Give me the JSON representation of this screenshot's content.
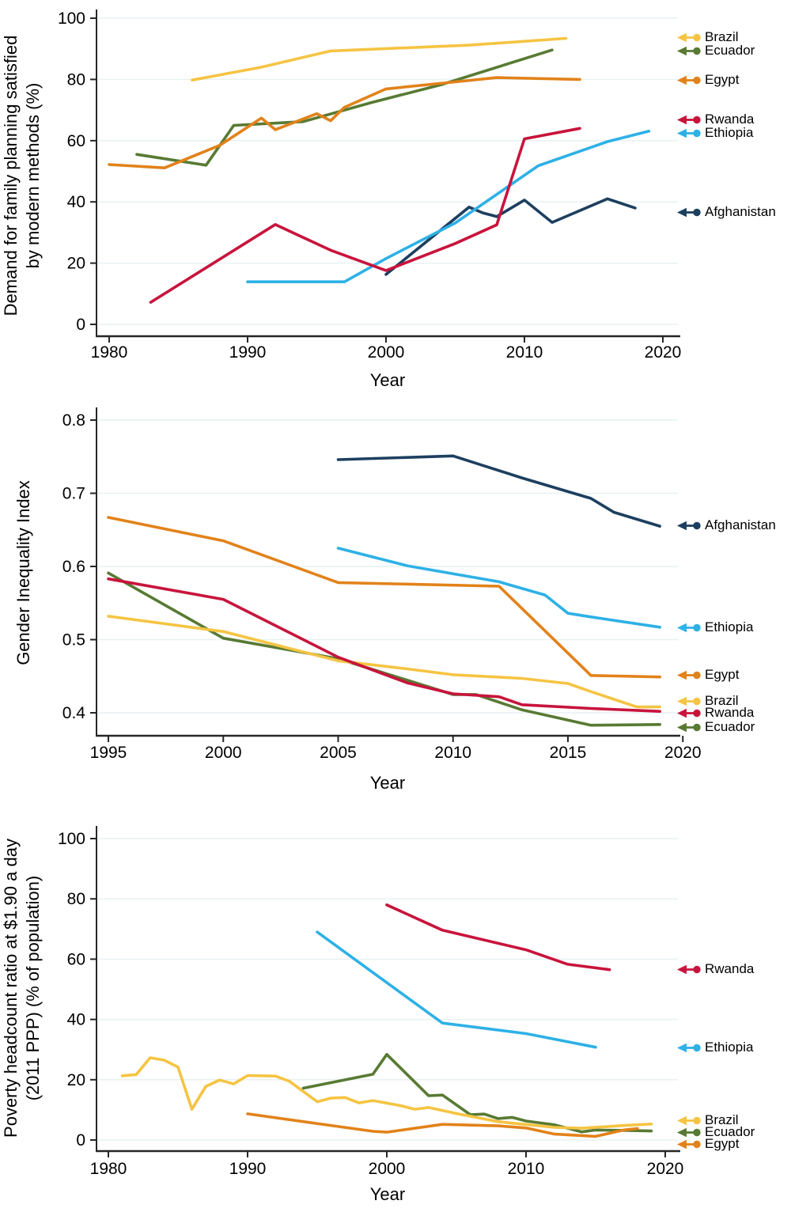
{
  "page": {
    "background": "#ffffff"
  },
  "icons": {
    "legend_marker": "arrow-left-dot-icon"
  },
  "colors": {
    "Brazil": "#F5C443",
    "Ecuador": "#587A33",
    "Egypt": "#E2821A",
    "Rwanda": "#C8143C",
    "Ethiopia": "#2EB1E6",
    "Afghanistan": "#1D3F5F",
    "grid": "#E8F1F3",
    "axis": "#262626",
    "text": "#000000"
  },
  "chart_data": [
    {
      "type": "line",
      "title": "",
      "ylabel_lines": [
        "Demand for family planning satisfied",
        "by modern methods (%)"
      ],
      "xlabel": "Year",
      "xlim": [
        1980,
        2020
      ],
      "xticks": [
        1980,
        1990,
        2000,
        2010,
        2020
      ],
      "ylim": [
        0,
        100
      ],
      "yticks": [
        0,
        20,
        40,
        60,
        80,
        100
      ],
      "grid": true,
      "legend_position": "right",
      "legend_order": [
        "Brazil",
        "Ecuador",
        "Egypt",
        "Rwanda",
        "Ethiopia",
        "Afghanistan"
      ],
      "series": [
        {
          "name": "Afghanistan",
          "points": [
            [
              2000,
              16.3
            ],
            [
              2006,
              38.3
            ],
            [
              2007,
              36.4
            ],
            [
              2008,
              35.2
            ],
            [
              2010,
              40.6
            ],
            [
              2012,
              33.3
            ],
            [
              2016,
              41.0
            ],
            [
              2018,
              38.0
            ]
          ]
        },
        {
          "name": "Ethiopia",
          "points": [
            [
              1990,
              13.9
            ],
            [
              1997,
              13.9
            ],
            [
              2000,
              21.5
            ],
            [
              2005,
              33.1
            ],
            [
              2011,
              51.8
            ],
            [
              2016,
              59.7
            ],
            [
              2019,
              63.1
            ]
          ]
        },
        {
          "name": "Ecuador",
          "points": [
            [
              1982,
              55.5
            ],
            [
              1987,
              52.0
            ],
            [
              1989,
              65.0
            ],
            [
              1994,
              66.2
            ],
            [
              1999,
              72.5
            ],
            [
              2004,
              78.3
            ],
            [
              2012,
              89.6
            ]
          ]
        },
        {
          "name": "Brazil",
          "points": [
            [
              1986,
              79.8
            ],
            [
              1991,
              84.0
            ],
            [
              1996,
              89.3
            ],
            [
              2006,
              91.2
            ],
            [
              2013,
              93.4
            ]
          ]
        },
        {
          "name": "Egypt",
          "points": [
            [
              1980,
              52.2
            ],
            [
              1984,
              51.1
            ],
            [
              1988,
              58.5
            ],
            [
              1991,
              67.4
            ],
            [
              1992,
              63.6
            ],
            [
              1995,
              68.8
            ],
            [
              1996,
              66.5
            ],
            [
              1997,
              70.9
            ],
            [
              2000,
              76.9
            ],
            [
              2005,
              79.2
            ],
            [
              2008,
              80.6
            ],
            [
              2014,
              80.0
            ]
          ]
        },
        {
          "name": "Rwanda",
          "points": [
            [
              1983,
              7.2
            ],
            [
              1992,
              32.6
            ],
            [
              1996,
              24.2
            ],
            [
              2000,
              17.6
            ],
            [
              2005,
              26.4
            ],
            [
              2008,
              32.5
            ],
            [
              2010,
              60.6
            ],
            [
              2014,
              64.0
            ]
          ]
        }
      ]
    },
    {
      "type": "line",
      "title": "",
      "ylabel_lines": [
        "Gender Inequality Index"
      ],
      "xlabel": "Year",
      "xlim": [
        1995,
        2020
      ],
      "xticks": [
        1995,
        2000,
        2005,
        2010,
        2015,
        2020
      ],
      "ylim": [
        0.4,
        0.8
      ],
      "yticks": [
        0.4,
        0.5,
        0.6,
        0.7,
        0.8
      ],
      "grid": true,
      "legend_position": "right",
      "legend_order": [
        "Afghanistan",
        "Ethiopia",
        "Egypt",
        "Brazil",
        "Rwanda",
        "Ecuador"
      ],
      "series": [
        {
          "name": "Afghanistan",
          "points": [
            [
              2005,
              0.746
            ],
            [
              2010,
              0.751
            ],
            [
              2013,
              0.721
            ],
            [
              2016,
              0.693
            ],
            [
              2017,
              0.674
            ],
            [
              2019,
              0.655
            ]
          ]
        },
        {
          "name": "Ethiopia",
          "points": [
            [
              2005,
              0.625
            ],
            [
              2008,
              0.601
            ],
            [
              2012,
              0.579
            ],
            [
              2014,
              0.561
            ],
            [
              2015,
              0.536
            ],
            [
              2016,
              0.531
            ],
            [
              2019,
              0.517
            ]
          ]
        },
        {
          "name": "Ecuador",
          "points": [
            [
              1995,
              0.591
            ],
            [
              2000,
              0.502
            ],
            [
              2005,
              0.474
            ],
            [
              2010,
              0.425
            ],
            [
              2011,
              0.425
            ],
            [
              2013,
              0.404
            ],
            [
              2016,
              0.383
            ],
            [
              2019,
              0.384
            ]
          ]
        },
        {
          "name": "Brazil",
          "points": [
            [
              1995,
              0.532
            ],
            [
              2000,
              0.511
            ],
            [
              2005,
              0.471
            ],
            [
              2008,
              0.46
            ],
            [
              2010,
              0.452
            ],
            [
              2013,
              0.447
            ],
            [
              2015,
              0.44
            ],
            [
              2016,
              0.429
            ],
            [
              2018,
              0.408
            ],
            [
              2019,
              0.408
            ]
          ]
        },
        {
          "name": "Egypt",
          "points": [
            [
              1995,
              0.667
            ],
            [
              2000,
              0.635
            ],
            [
              2005,
              0.578
            ],
            [
              2012,
              0.573
            ],
            [
              2016,
              0.451
            ],
            [
              2019,
              0.449
            ]
          ]
        },
        {
          "name": "Rwanda",
          "points": [
            [
              1995,
              0.583
            ],
            [
              2000,
              0.555
            ],
            [
              2005,
              0.476
            ],
            [
              2008,
              0.441
            ],
            [
              2010,
              0.426
            ],
            [
              2012,
              0.422
            ],
            [
              2013,
              0.411
            ],
            [
              2016,
              0.406
            ],
            [
              2019,
              0.402
            ]
          ]
        }
      ]
    },
    {
      "type": "line",
      "title": "",
      "ylabel_lines": [
        "Poverty headcount ratio at $1.90 a day",
        "(2011 PPP) (% of population)"
      ],
      "xlabel": "Year",
      "xlim": [
        1980,
        2020
      ],
      "xticks": [
        1980,
        1990,
        2000,
        2010,
        2020
      ],
      "ylim": [
        0,
        100
      ],
      "yticks": [
        0,
        20,
        40,
        60,
        80,
        100
      ],
      "grid": true,
      "legend_position": "right",
      "legend_order": [
        "Rwanda",
        "Ethiopia",
        "Brazil",
        "Ecuador",
        "Egypt"
      ],
      "series": [
        {
          "name": "Ethiopia",
          "points": [
            [
              1995,
              69.0
            ],
            [
              2000,
              52.2
            ],
            [
              2004,
              38.8
            ],
            [
              2010,
              35.3
            ],
            [
              2012,
              33.5
            ],
            [
              2015,
              30.8
            ]
          ]
        },
        {
          "name": "Rwanda",
          "points": [
            [
              2000,
              78.0
            ],
            [
              2004,
              69.6
            ],
            [
              2010,
              63.1
            ],
            [
              2013,
              58.3
            ],
            [
              2016,
              56.5
            ]
          ]
        },
        {
          "name": "Ecuador",
          "points": [
            [
              1994,
              17.2
            ],
            [
              1999,
              21.8
            ],
            [
              2000,
              28.4
            ],
            [
              2003,
              14.7
            ],
            [
              2004,
              14.9
            ],
            [
              2006,
              8.4
            ],
            [
              2007,
              8.6
            ],
            [
              2008,
              7.1
            ],
            [
              2009,
              7.5
            ],
            [
              2010,
              6.3
            ],
            [
              2012,
              5.1
            ],
            [
              2013,
              3.9
            ],
            [
              2014,
              2.7
            ],
            [
              2015,
              3.3
            ],
            [
              2017,
              3.2
            ],
            [
              2019,
              3.0
            ]
          ]
        },
        {
          "name": "Brazil",
          "points": [
            [
              1981,
              21.3
            ],
            [
              1982,
              21.7
            ],
            [
              1983,
              27.3
            ],
            [
              1984,
              26.5
            ],
            [
              1985,
              24.2
            ],
            [
              1986,
              10.2
            ],
            [
              1987,
              17.8
            ],
            [
              1988,
              19.9
            ],
            [
              1989,
              18.6
            ],
            [
              1990,
              21.4
            ],
            [
              1992,
              21.2
            ],
            [
              1993,
              19.5
            ],
            [
              1995,
              12.7
            ],
            [
              1996,
              13.9
            ],
            [
              1997,
              14.1
            ],
            [
              1998,
              12.3
            ],
            [
              1999,
              13.1
            ],
            [
              2001,
              11.4
            ],
            [
              2002,
              10.2
            ],
            [
              2003,
              10.8
            ],
            [
              2005,
              8.8
            ],
            [
              2008,
              6.1
            ],
            [
              2009,
              5.6
            ],
            [
              2011,
              4.7
            ],
            [
              2012,
              4.2
            ],
            [
              2014,
              3.9
            ],
            [
              2017,
              4.8
            ],
            [
              2019,
              5.3
            ]
          ]
        },
        {
          "name": "Egypt",
          "points": [
            [
              1990,
              8.7
            ],
            [
              1999,
              2.9
            ],
            [
              2000,
              2.6
            ],
            [
              2004,
              5.2
            ],
            [
              2008,
              4.7
            ],
            [
              2010,
              4.0
            ],
            [
              2012,
              2.0
            ],
            [
              2015,
              1.2
            ],
            [
              2017,
              3.3
            ],
            [
              2018,
              3.8
            ]
          ]
        }
      ]
    }
  ]
}
